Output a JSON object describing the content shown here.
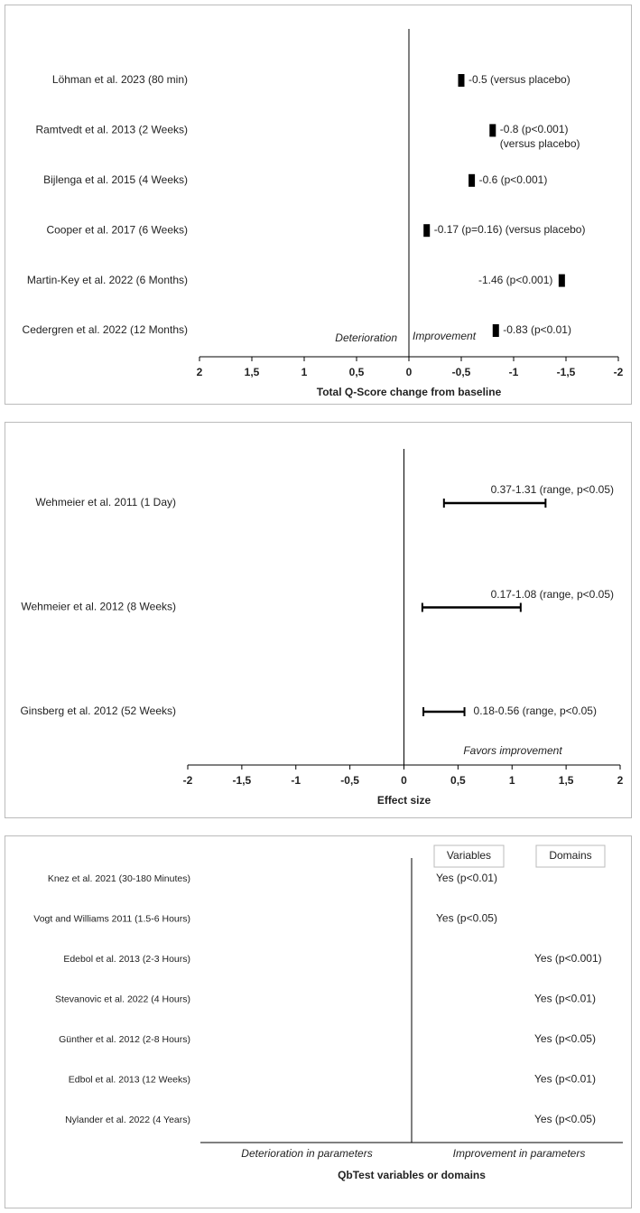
{
  "chart_data": [
    {
      "type": "bar",
      "categories": [
        "Löhman et al. 2023 (80 min)",
        "Ramtvedt et al. 2013 (2 Weeks)",
        "Bijlenga et al. 2015 (4 Weeks)",
        "Cooper et al. 2017 (6 Weeks)",
        "Martin-Key et al. 2022 (6 Months)",
        "Cedergren et al. 2022 (12 Months)"
      ],
      "values": [
        -0.5,
        -0.8,
        -0.6,
        -0.17,
        -1.46,
        -0.83
      ],
      "value_labels": [
        "-0.5 (versus placebo)",
        "-0.8 (p<0.001)\n(versus placebo)",
        "-0.6 (p<0.001)",
        "-0.17 (p=0.16) (versus placebo)",
        "-1.46 (p<0.001)",
        "-0.83 (p<0.01)"
      ],
      "color": "#000000",
      "xlim": [
        2,
        -2
      ],
      "xticks": [
        2,
        {
          "value": 1.5,
          "label": "1,5"
        },
        1,
        {
          "value": 0.5,
          "label": "0,5"
        },
        0,
        {
          "value": -0.5,
          "label": "-0,5"
        },
        -1,
        {
          "value": -1.5,
          "label": "-1,5"
        },
        -2
      ],
      "xlabel": "Total Q-Score change from baseline",
      "annotations": [
        "Deterioration",
        "Improvement"
      ]
    },
    {
      "type": "range",
      "categories": [
        "Wehmeier et al. 2011 (1 Day)",
        "Wehmeier et al. 2012 (8 Weeks)",
        "Ginsberg et al. 2012 (52 Weeks)"
      ],
      "low": [
        0.37,
        0.17,
        0.18
      ],
      "high": [
        1.31,
        1.08,
        0.56
      ],
      "value_labels": [
        "0.37-1.31 (range, p<0.05)",
        "0.17-1.08 (range, p<0.05)",
        "0.18-0.56 (range, p<0.05)"
      ],
      "color": "#000000",
      "xlim": [
        -2,
        2
      ],
      "xticks": [
        -2,
        {
          "value": -1.5,
          "label": "-1,5"
        },
        -1,
        {
          "value": -0.5,
          "label": "-0,5"
        },
        0,
        {
          "value": 0.5,
          "label": "0,5"
        },
        1,
        {
          "value": 1.5,
          "label": "1,5"
        },
        2
      ],
      "xlabel": "Effect size",
      "annotations": [
        "Favors improvement"
      ]
    },
    {
      "type": "table",
      "categories": [
        "Knez et al. 2021 (30-180 Minutes)",
        "Vogt and Williams 2011 (1.5-6 Hours)",
        "Edebol et al. 2013 (2-3 Hours)",
        "Stevanovic et al. 2022 (4 Hours)",
        "Günther et al. 2012 (2-8 Hours)",
        "Edbol et al. 2013 (12 Weeks)",
        "Nylander et al. 2022 (4 Years)"
      ],
      "series": [
        {
          "name": "Variables",
          "values": [
            "Yes (p<0.01)",
            "Yes (p<0.05)",
            null,
            null,
            null,
            null,
            null
          ]
        },
        {
          "name": "Domains",
          "values": [
            null,
            null,
            "Yes (p<0.001)",
            "Yes (p<0.01)",
            "Yes (p<0.05)",
            "Yes (p<0.01)",
            "Yes (p<0.05)"
          ]
        }
      ],
      "xlabel": "QbTest variables or domains",
      "annotations": [
        "Deterioration in parameters",
        "Improvement in parameters"
      ]
    }
  ]
}
